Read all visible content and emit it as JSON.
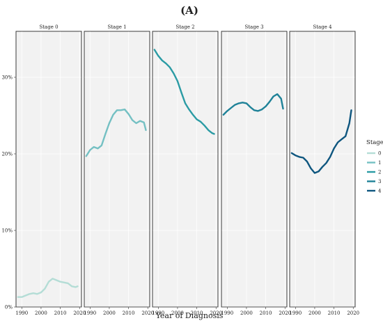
{
  "figure_label": "(A)",
  "chart_data": {
    "type": "line",
    "xlabel": "Year of Diagnosis",
    "ylabel": "",
    "xlim": [
      1987,
      2021
    ],
    "ylim": [
      0,
      0.36
    ],
    "x_ticks": [
      1990,
      2000,
      2010,
      2020
    ],
    "x_tick_labels": [
      "1990",
      "2000",
      "2010",
      "2020"
    ],
    "y_ticks": [
      0,
      0.1,
      0.2,
      0.3
    ],
    "y_tick_labels": [
      "0%",
      "10%",
      "20%",
      "30%"
    ],
    "grid": true,
    "legend": {
      "title": "Stage",
      "placement": "right",
      "entries": [
        "0",
        "1",
        "2",
        "3",
        "4"
      ]
    },
    "panels": [
      {
        "name": "Stage 0",
        "color": "#b4ddd6",
        "points": [
          [
            1988,
            0.013
          ],
          [
            1990,
            0.013
          ],
          [
            1992,
            0.015
          ],
          [
            1994,
            0.017
          ],
          [
            1996,
            0.018
          ],
          [
            1998,
            0.017
          ],
          [
            2000,
            0.019
          ],
          [
            2002,
            0.024
          ],
          [
            2004,
            0.033
          ],
          [
            2006,
            0.037
          ],
          [
            2008,
            0.035
          ],
          [
            2010,
            0.033
          ],
          [
            2012,
            0.032
          ],
          [
            2014,
            0.031
          ],
          [
            2016,
            0.027
          ],
          [
            2018,
            0.026
          ],
          [
            2019,
            0.027
          ]
        ]
      },
      {
        "name": "Stage 1",
        "color": "#74c0c3",
        "points": [
          [
            1988,
            0.197
          ],
          [
            1990,
            0.205
          ],
          [
            1992,
            0.209
          ],
          [
            1994,
            0.207
          ],
          [
            1996,
            0.211
          ],
          [
            1998,
            0.226
          ],
          [
            2000,
            0.24
          ],
          [
            2002,
            0.251
          ],
          [
            2004,
            0.257
          ],
          [
            2006,
            0.257
          ],
          [
            2008,
            0.258
          ],
          [
            2010,
            0.252
          ],
          [
            2012,
            0.244
          ],
          [
            2014,
            0.24
          ],
          [
            2016,
            0.243
          ],
          [
            2018,
            0.241
          ],
          [
            2019,
            0.231
          ]
        ]
      },
      {
        "name": "Stage 2",
        "color": "#2a9ba4",
        "points": [
          [
            1988,
            0.336
          ],
          [
            1990,
            0.328
          ],
          [
            1992,
            0.322
          ],
          [
            1994,
            0.318
          ],
          [
            1996,
            0.313
          ],
          [
            1998,
            0.305
          ],
          [
            2000,
            0.295
          ],
          [
            2002,
            0.28
          ],
          [
            2004,
            0.266
          ],
          [
            2006,
            0.258
          ],
          [
            2008,
            0.251
          ],
          [
            2010,
            0.245
          ],
          [
            2012,
            0.242
          ],
          [
            2014,
            0.237
          ],
          [
            2016,
            0.231
          ],
          [
            2018,
            0.227
          ],
          [
            2019,
            0.226
          ]
        ]
      },
      {
        "name": "Stage 3",
        "color": "#1f8298",
        "points": [
          [
            1988,
            0.251
          ],
          [
            1990,
            0.256
          ],
          [
            1992,
            0.26
          ],
          [
            1994,
            0.264
          ],
          [
            1996,
            0.266
          ],
          [
            1998,
            0.267
          ],
          [
            2000,
            0.266
          ],
          [
            2002,
            0.261
          ],
          [
            2004,
            0.257
          ],
          [
            2006,
            0.256
          ],
          [
            2008,
            0.258
          ],
          [
            2010,
            0.262
          ],
          [
            2012,
            0.268
          ],
          [
            2014,
            0.275
          ],
          [
            2016,
            0.278
          ],
          [
            2018,
            0.272
          ],
          [
            2019,
            0.259
          ]
        ]
      },
      {
        "name": "Stage 4",
        "color": "#0e567f",
        "points": [
          [
            1988,
            0.201
          ],
          [
            1990,
            0.198
          ],
          [
            1992,
            0.196
          ],
          [
            1994,
            0.195
          ],
          [
            1996,
            0.19
          ],
          [
            1998,
            0.181
          ],
          [
            2000,
            0.175
          ],
          [
            2002,
            0.177
          ],
          [
            2004,
            0.183
          ],
          [
            2006,
            0.188
          ],
          [
            2008,
            0.196
          ],
          [
            2010,
            0.207
          ],
          [
            2012,
            0.215
          ],
          [
            2014,
            0.219
          ],
          [
            2016,
            0.223
          ],
          [
            2018,
            0.24
          ],
          [
            2019,
            0.257
          ]
        ]
      }
    ]
  }
}
